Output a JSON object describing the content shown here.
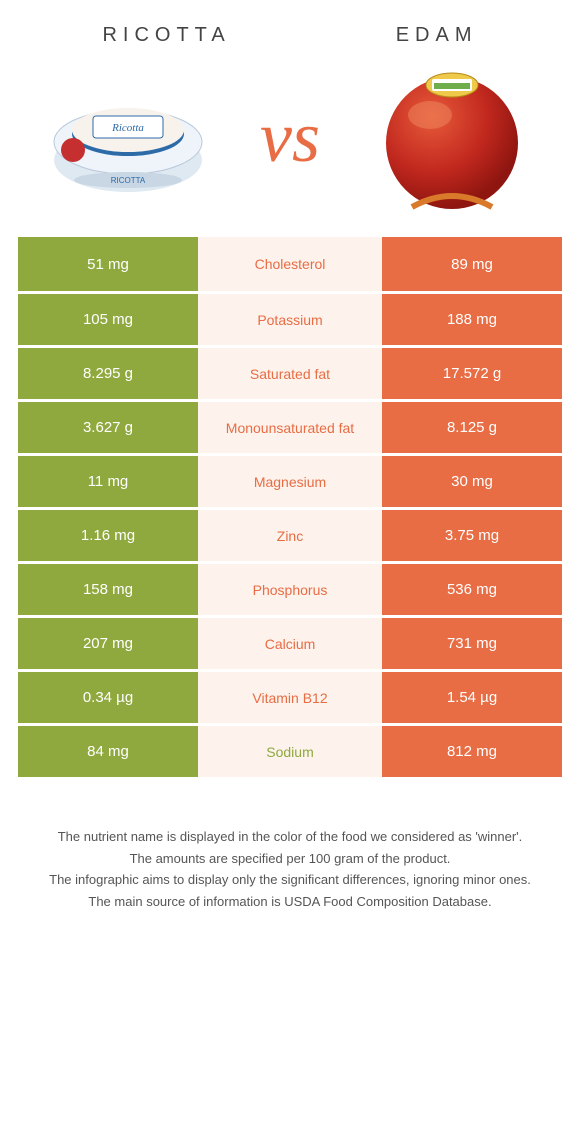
{
  "header": {
    "left": "RICOTTA",
    "right": "EDAM"
  },
  "vs": "vs",
  "colors": {
    "left_bg": "#8fa93f",
    "right_bg": "#e86c44",
    "mid_bg": "#fdf3ec",
    "mid_text_winner_left": "#8fa93f",
    "mid_text_winner_right": "#e86c44"
  },
  "rows": [
    {
      "label": "Cholesterol",
      "left": "51 mg",
      "right": "89 mg",
      "winner": "right"
    },
    {
      "label": "Potassium",
      "left": "105 mg",
      "right": "188 mg",
      "winner": "right"
    },
    {
      "label": "Saturated fat",
      "left": "8.295 g",
      "right": "17.572 g",
      "winner": "right"
    },
    {
      "label": "Monounsaturated fat",
      "left": "3.627 g",
      "right": "8.125 g",
      "winner": "right"
    },
    {
      "label": "Magnesium",
      "left": "11 mg",
      "right": "30 mg",
      "winner": "right"
    },
    {
      "label": "Zinc",
      "left": "1.16 mg",
      "right": "3.75 mg",
      "winner": "right"
    },
    {
      "label": "Phosphorus",
      "left": "158 mg",
      "right": "536 mg",
      "winner": "right"
    },
    {
      "label": "Calcium",
      "left": "207 mg",
      "right": "731 mg",
      "winner": "right"
    },
    {
      "label": "Vitamin B12",
      "left": "0.34 µg",
      "right": "1.54 µg",
      "winner": "right"
    },
    {
      "label": "Sodium",
      "left": "84 mg",
      "right": "812 mg",
      "winner": "left"
    }
  ],
  "footnotes": [
    "The nutrient name is displayed in the color of the food we considered as 'winner'.",
    "The amounts are specified per 100 gram of the product.",
    "The infographic aims to display only the significant differences, ignoring minor ones.",
    "The main source of information is USDA Food Composition Database."
  ]
}
